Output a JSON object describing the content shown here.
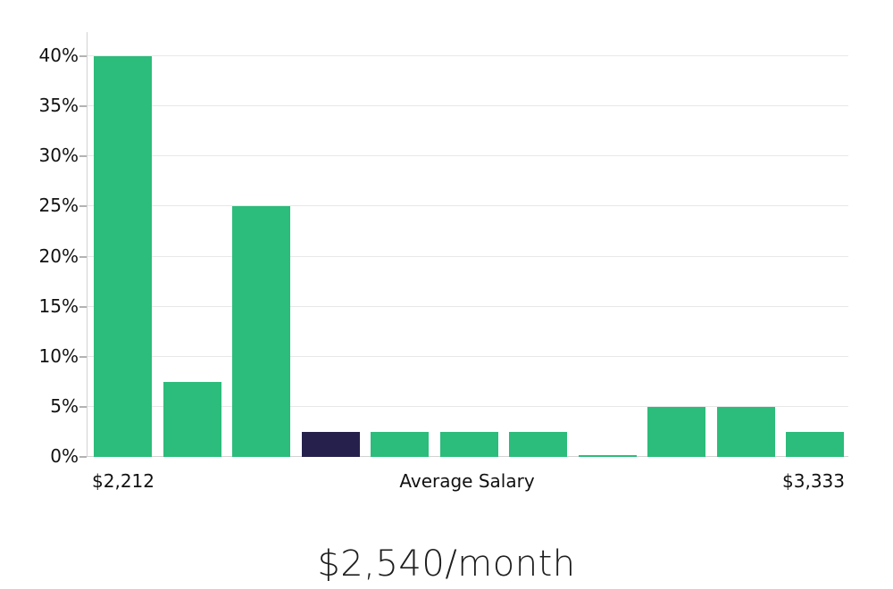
{
  "chart_data": {
    "type": "bar",
    "title": "$2,540/month",
    "xlabel": "Average Salary",
    "x_tick_left": "$2,212",
    "x_tick_right": "$3,333",
    "ylim": [
      0,
      40
    ],
    "grid": true,
    "legend_position": "none",
    "y_ticks": [
      {
        "value": 0,
        "label": "0%"
      },
      {
        "value": 5,
        "label": "5%"
      },
      {
        "value": 10,
        "label": "10%"
      },
      {
        "value": 15,
        "label": "15%"
      },
      {
        "value": 20,
        "label": "20%"
      },
      {
        "value": 25,
        "label": "25%"
      },
      {
        "value": 30,
        "label": "30%"
      },
      {
        "value": 35,
        "label": "35%"
      },
      {
        "value": 40,
        "label": "40%"
      }
    ],
    "values": [
      40,
      7.5,
      25,
      2.5,
      2.5,
      2.5,
      2.5,
      0.2,
      5,
      5,
      2.5
    ],
    "highlight_index": 3,
    "colors": {
      "bar": "#2cbc7b",
      "highlight": "#25214c",
      "grid": "#e8e8e8",
      "axis": "#d2d2d2",
      "tick": "#b3b3b3",
      "text": "#111111",
      "title": "#1e1e1e"
    }
  }
}
